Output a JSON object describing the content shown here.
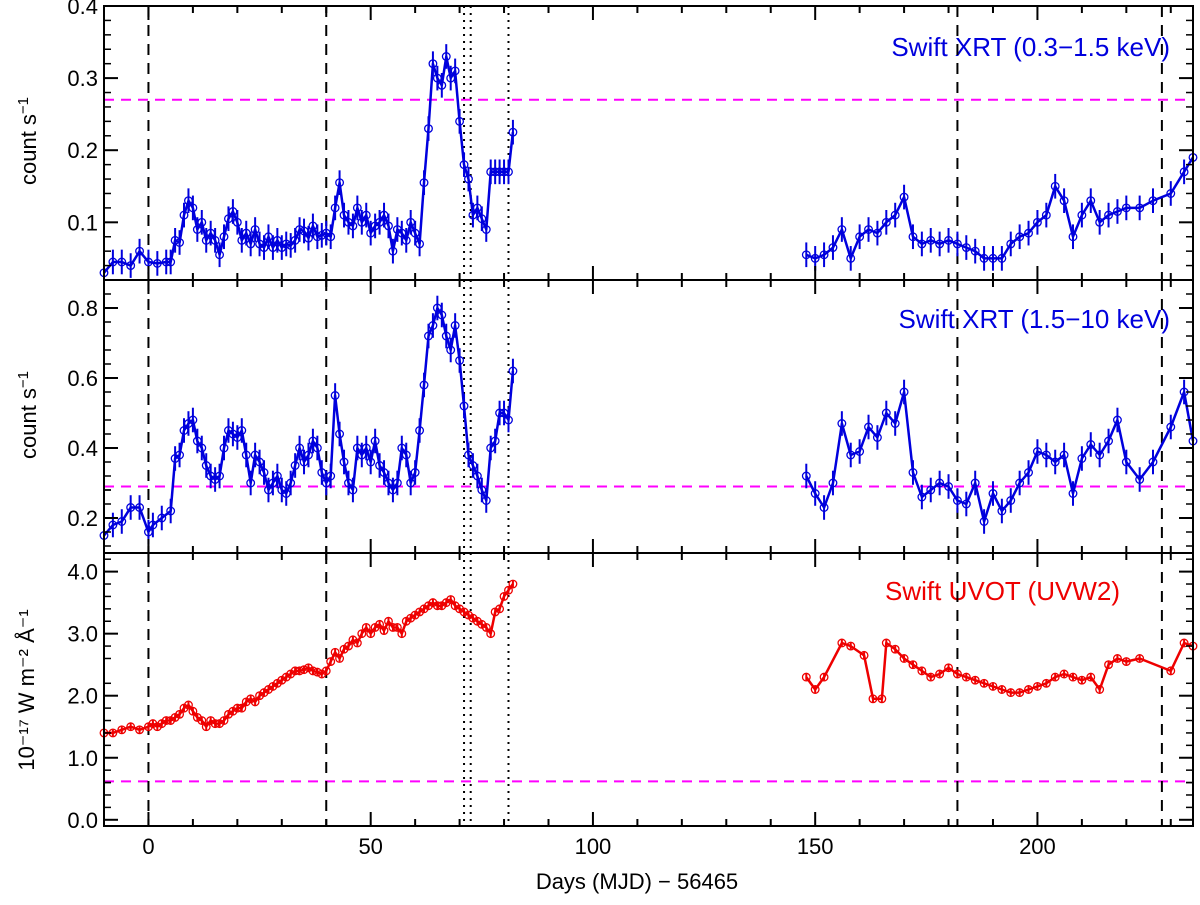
{
  "chart_data": [
    {
      "type": "line",
      "title": "Swift XRT (0.3−1.5 keV)",
      "title_color": "#0000dd",
      "ylabel": "count s⁻¹",
      "ylabel_base": "count s",
      "ylabel_sup": "−1",
      "xlim": [
        -10,
        235
      ],
      "ylim": [
        0.02,
        0.4
      ],
      "yticks": [
        0.1,
        0.2,
        0.3,
        0.4
      ],
      "ytick_labels": [
        "0.1",
        "0.2",
        "0.3",
        "0.4"
      ],
      "hline": 0.27,
      "hline_color": "#ff00ff",
      "series": [
        {
          "color": "#0000dd",
          "x": [
            -10,
            -8,
            -6,
            -4,
            -2,
            0,
            2,
            4,
            5,
            6,
            7,
            8,
            9,
            10,
            11,
            12,
            13,
            14,
            15,
            16,
            17,
            18,
            19,
            20,
            21,
            22,
            23,
            24,
            25,
            26,
            27,
            28,
            29,
            30,
            31,
            32,
            33,
            34,
            35,
            36,
            37,
            38,
            39,
            40,
            41,
            42,
            43,
            44,
            45,
            46,
            47,
            48,
            49,
            50,
            51,
            52,
            53,
            54,
            55,
            56,
            57,
            58,
            59,
            60,
            61,
            62,
            63,
            64,
            65,
            66,
            67,
            68,
            69,
            70,
            71,
            72,
            73,
            74,
            75,
            76,
            77,
            78,
            79,
            80,
            81,
            82,
            148,
            150,
            152,
            154,
            156,
            158,
            160,
            162,
            164,
            166,
            168,
            170,
            172,
            174,
            176,
            178,
            180,
            182,
            184,
            186,
            188,
            190,
            192,
            194,
            196,
            198,
            200,
            202,
            204,
            206,
            208,
            210,
            212,
            214,
            216,
            218,
            220,
            223,
            226,
            230,
            233,
            235
          ],
          "y": [
            0.03,
            0.045,
            0.045,
            0.04,
            0.06,
            0.045,
            0.043,
            0.045,
            0.045,
            0.075,
            0.072,
            0.11,
            0.13,
            0.12,
            0.09,
            0.1,
            0.075,
            0.085,
            0.075,
            0.055,
            0.08,
            0.105,
            0.115,
            0.1,
            0.075,
            0.085,
            0.07,
            0.09,
            0.07,
            0.065,
            0.08,
            0.065,
            0.075,
            0.065,
            0.07,
            0.068,
            0.075,
            0.09,
            0.088,
            0.078,
            0.095,
            0.08,
            0.082,
            0.085,
            0.08,
            0.12,
            0.155,
            0.11,
            0.1,
            0.095,
            0.12,
            0.1,
            0.11,
            0.085,
            0.095,
            0.1,
            0.11,
            0.095,
            0.06,
            0.09,
            0.085,
            0.075,
            0.1,
            0.085,
            0.07,
            0.155,
            0.23,
            0.32,
            0.3,
            0.29,
            0.33,
            0.3,
            0.31,
            0.24,
            0.18,
            0.16,
            0.11,
            0.12,
            0.105,
            0.09,
            0.17,
            0.17,
            0.17,
            0.17,
            0.17,
            0.225,
            0.055,
            0.05,
            0.055,
            0.065,
            0.09,
            0.05,
            0.08,
            0.09,
            0.085,
            0.1,
            0.11,
            0.135,
            0.08,
            0.07,
            0.075,
            0.07,
            0.075,
            0.07,
            0.065,
            0.06,
            0.05,
            0.05,
            0.05,
            0.07,
            0.08,
            0.085,
            0.1,
            0.11,
            0.15,
            0.13,
            0.08,
            0.11,
            0.13,
            0.1,
            0.11,
            0.115,
            0.12,
            0.12,
            0.13,
            0.14,
            0.17,
            0.19
          ]
        }
      ]
    },
    {
      "type": "line",
      "title": "Swift XRT (1.5−10 keV)",
      "title_color": "#0000dd",
      "ylabel": "count s⁻¹",
      "ylabel_base": "count s",
      "ylabel_sup": "−1",
      "xlim": [
        -10,
        235
      ],
      "ylim": [
        0.1,
        0.88
      ],
      "yticks": [
        0.2,
        0.4,
        0.6,
        0.8
      ],
      "ytick_labels": [
        "0.2",
        "0.4",
        "0.6",
        "0.8"
      ],
      "hline": 0.29,
      "hline_color": "#ff00ff",
      "series": [
        {
          "color": "#0000dd",
          "x": [
            -10,
            -8,
            -6,
            -4,
            -2,
            0,
            1,
            3,
            5,
            6,
            7,
            8,
            9,
            10,
            11,
            12,
            13,
            14,
            15,
            16,
            17,
            18,
            19,
            20,
            21,
            22,
            23,
            24,
            25,
            26,
            27,
            28,
            29,
            30,
            31,
            32,
            33,
            34,
            35,
            36,
            37,
            38,
            39,
            40,
            41,
            42,
            43,
            44,
            45,
            46,
            47,
            48,
            49,
            50,
            51,
            52,
            53,
            54,
            55,
            56,
            57,
            58,
            59,
            60,
            61,
            62,
            63,
            64,
            65,
            66,
            67,
            68,
            69,
            70,
            71,
            72,
            73,
            74,
            75,
            76,
            77,
            78,
            79,
            80,
            81,
            82,
            148,
            150,
            152,
            154,
            156,
            158,
            160,
            162,
            164,
            166,
            168,
            170,
            172,
            174,
            176,
            178,
            180,
            182,
            184,
            186,
            188,
            190,
            192,
            194,
            196,
            198,
            200,
            202,
            204,
            206,
            208,
            210,
            212,
            214,
            216,
            218,
            220,
            223,
            226,
            230,
            233,
            235
          ],
          "y": [
            0.15,
            0.18,
            0.19,
            0.23,
            0.23,
            0.16,
            0.18,
            0.2,
            0.22,
            0.37,
            0.38,
            0.45,
            0.47,
            0.48,
            0.42,
            0.4,
            0.35,
            0.32,
            0.31,
            0.32,
            0.4,
            0.45,
            0.44,
            0.43,
            0.45,
            0.38,
            0.3,
            0.38,
            0.36,
            0.33,
            0.28,
            0.3,
            0.32,
            0.28,
            0.27,
            0.3,
            0.35,
            0.4,
            0.36,
            0.38,
            0.42,
            0.4,
            0.33,
            0.3,
            0.32,
            0.55,
            0.44,
            0.36,
            0.3,
            0.28,
            0.4,
            0.38,
            0.4,
            0.36,
            0.42,
            0.35,
            0.33,
            0.3,
            0.28,
            0.3,
            0.4,
            0.38,
            0.3,
            0.33,
            0.45,
            0.58,
            0.72,
            0.75,
            0.8,
            0.78,
            0.72,
            0.68,
            0.75,
            0.65,
            0.52,
            0.38,
            0.35,
            0.32,
            0.28,
            0.25,
            0.4,
            0.42,
            0.5,
            0.5,
            0.48,
            0.62,
            0.32,
            0.27,
            0.23,
            0.3,
            0.47,
            0.38,
            0.39,
            0.46,
            0.43,
            0.5,
            0.47,
            0.56,
            0.33,
            0.26,
            0.28,
            0.3,
            0.29,
            0.25,
            0.24,
            0.3,
            0.19,
            0.27,
            0.22,
            0.25,
            0.3,
            0.33,
            0.39,
            0.38,
            0.36,
            0.38,
            0.27,
            0.37,
            0.41,
            0.38,
            0.42,
            0.48,
            0.36,
            0.31,
            0.36,
            0.46,
            0.56,
            0.42
          ]
        }
      ]
    },
    {
      "type": "line",
      "title": "Swift UVOT (UVW2)",
      "title_color": "#ee0000",
      "ylabel": "10⁻¹⁷ W m⁻² Å⁻¹",
      "xlabel": "Days (MJD) − 56465",
      "xlim": [
        -10,
        235
      ],
      "ylim": [
        -0.1,
        4.3
      ],
      "yticks": [
        0.0,
        1.0,
        2.0,
        3.0,
        4.0
      ],
      "ytick_labels": [
        "0.0",
        "1.0",
        "2.0",
        "3.0",
        "4.0"
      ],
      "xticks": [
        0,
        50,
        100,
        150,
        200
      ],
      "xtick_labels": [
        "0",
        "50",
        "100",
        "150",
        "200"
      ],
      "hline": 0.62,
      "hline_color": "#ff00ff",
      "series": [
        {
          "color": "#ee0000",
          "x": [
            -10,
            -8,
            -6,
            -4,
            -2,
            0,
            1,
            2,
            3,
            4,
            5,
            6,
            7,
            8,
            9,
            10,
            11,
            12,
            13,
            14,
            15,
            16,
            17,
            18,
            19,
            20,
            21,
            22,
            23,
            24,
            25,
            26,
            27,
            28,
            29,
            30,
            31,
            32,
            33,
            34,
            35,
            36,
            37,
            38,
            39,
            40,
            41,
            42,
            43,
            44,
            45,
            46,
            47,
            48,
            49,
            50,
            51,
            52,
            53,
            54,
            55,
            56,
            57,
            58,
            59,
            60,
            61,
            62,
            63,
            64,
            65,
            66,
            67,
            68,
            69,
            70,
            71,
            72,
            73,
            74,
            75,
            76,
            77,
            78,
            79,
            80,
            81,
            82,
            148,
            150,
            152,
            156,
            158,
            161,
            163,
            165,
            166,
            168,
            170,
            172,
            174,
            176,
            178,
            180,
            182,
            184,
            186,
            188,
            190,
            192,
            194,
            196,
            198,
            200,
            202,
            204,
            206,
            208,
            210,
            212,
            214,
            216,
            218,
            220,
            223,
            230,
            233,
            235
          ],
          "y": [
            1.4,
            1.4,
            1.45,
            1.5,
            1.45,
            1.5,
            1.55,
            1.5,
            1.55,
            1.6,
            1.6,
            1.65,
            1.7,
            1.8,
            1.85,
            1.75,
            1.65,
            1.6,
            1.5,
            1.6,
            1.55,
            1.55,
            1.6,
            1.7,
            1.75,
            1.8,
            1.8,
            1.9,
            1.95,
            1.9,
            2.0,
            2.05,
            2.1,
            2.15,
            2.2,
            2.25,
            2.3,
            2.35,
            2.4,
            2.4,
            2.42,
            2.45,
            2.4,
            2.38,
            2.35,
            2.4,
            2.55,
            2.7,
            2.6,
            2.75,
            2.8,
            2.9,
            2.85,
            3.0,
            3.1,
            3.0,
            3.1,
            3.15,
            3.05,
            3.2,
            3.1,
            3.1,
            3.0,
            3.2,
            3.25,
            3.3,
            3.35,
            3.4,
            3.45,
            3.5,
            3.45,
            3.45,
            3.5,
            3.55,
            3.45,
            3.4,
            3.35,
            3.3,
            3.25,
            3.2,
            3.15,
            3.1,
            3.0,
            3.35,
            3.4,
            3.6,
            3.7,
            3.8,
            2.3,
            2.1,
            2.3,
            2.85,
            2.8,
            2.65,
            1.95,
            1.95,
            2.85,
            2.75,
            2.6,
            2.5,
            2.4,
            2.3,
            2.35,
            2.45,
            2.35,
            2.3,
            2.25,
            2.2,
            2.15,
            2.1,
            2.05,
            2.05,
            2.1,
            2.15,
            2.2,
            2.3,
            2.35,
            2.3,
            2.25,
            2.3,
            2.1,
            2.5,
            2.6,
            2.55,
            2.6,
            2.4,
            2.85,
            2.8
          ]
        }
      ]
    }
  ],
  "vlines_dashed": [
    0,
    40,
    182,
    228
  ],
  "vlines_dotted": [
    71,
    72.5,
    81
  ],
  "vline_color": "#000000"
}
